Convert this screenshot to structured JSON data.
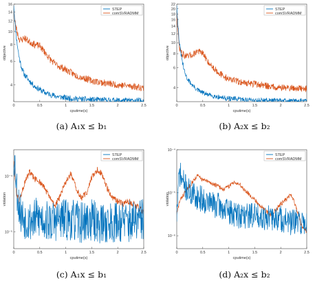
{
  "colors": {
    "series1": "#0072BD",
    "series2": "#D95319",
    "axis": "#444444"
  },
  "chart_data": [
    {
      "type": "line",
      "caption": "(a)  A₁x ≤ b₁",
      "xlabel": "cputime(s)",
      "ylabel": "objective",
      "xlim": [
        0,
        2.5
      ],
      "ylim": [
        3,
        16
      ],
      "yscale": "log",
      "xticks": [
        "0",
        "0.5",
        "1",
        "1.5",
        "2",
        "2.5"
      ],
      "yticks": [
        {
          "v": 16,
          "label": "16"
        },
        {
          "v": 14,
          "label": "14"
        },
        {
          "v": 12,
          "label": "12"
        },
        {
          "v": 10,
          "label": "10"
        },
        {
          "v": 8,
          "label": "8"
        },
        {
          "v": 6,
          "label": "6"
        },
        {
          "v": 4,
          "label": "4"
        }
      ],
      "legend": {
        "position": "top-right",
        "entries": [
          "STEP",
          "comSVRADMM"
        ]
      },
      "series": [
        {
          "name": "STEP",
          "color": "#0072BD",
          "noise": 0.05,
          "seed": 11,
          "x": [
            0,
            0.02,
            0.05,
            0.1,
            0.15,
            0.2,
            0.3,
            0.4,
            0.5,
            0.6,
            0.8,
            1.0,
            1.2,
            1.5,
            1.8,
            2.0,
            2.3,
            2.5
          ],
          "y": [
            16,
            12,
            9,
            6.5,
            5.4,
            4.8,
            4.3,
            3.9,
            3.7,
            3.5,
            3.3,
            3.2,
            3.15,
            3.1,
            3.08,
            3.06,
            3.05,
            3.05
          ]
        },
        {
          "name": "comSVRADMM",
          "color": "#D95319",
          "noise": 0.06,
          "seed": 23,
          "x": [
            0,
            0.02,
            0.05,
            0.1,
            0.15,
            0.2,
            0.3,
            0.4,
            0.5,
            0.6,
            0.7,
            0.8,
            1.0,
            1.2,
            1.5,
            1.8,
            2.0,
            2.3,
            2.5
          ],
          "y": [
            15,
            12,
            10.5,
            8.8,
            8.6,
            9.0,
            8.4,
            8.0,
            7.8,
            7.0,
            6.2,
            5.7,
            5.2,
            4.7,
            4.3,
            4.1,
            4.0,
            3.9,
            3.8
          ]
        }
      ]
    },
    {
      "type": "line",
      "caption": "(b)  A₂x ≤ b₂",
      "xlabel": "cputime(s)",
      "ylabel": "objective",
      "xlim": [
        0,
        2.5
      ],
      "ylim": [
        3,
        22
      ],
      "yscale": "log",
      "xticks": [
        "0",
        "0.5",
        "1",
        "1.5",
        "2",
        "2.5"
      ],
      "yticks": [
        {
          "v": 22,
          "label": "22"
        },
        {
          "v": 20,
          "label": "20"
        },
        {
          "v": 18,
          "label": "18"
        },
        {
          "v": 16,
          "label": "16"
        },
        {
          "v": 14,
          "label": "14"
        },
        {
          "v": 12,
          "label": "12"
        },
        {
          "v": 10,
          "label": "10"
        },
        {
          "v": 8,
          "label": "8"
        },
        {
          "v": 6,
          "label": "6"
        },
        {
          "v": 4,
          "label": "4"
        }
      ],
      "legend": {
        "position": "top-right",
        "entries": [
          "STEP",
          "comSVRADMM"
        ]
      },
      "series": [
        {
          "name": "STEP",
          "color": "#0072BD",
          "noise": 0.05,
          "seed": 31,
          "x": [
            0,
            0.02,
            0.05,
            0.1,
            0.15,
            0.2,
            0.3,
            0.4,
            0.5,
            0.6,
            0.8,
            1.0,
            1.2,
            1.5,
            1.8,
            2.0,
            2.3,
            2.5
          ],
          "y": [
            22,
            15,
            10,
            7,
            5.5,
            4.8,
            4.2,
            3.8,
            3.6,
            3.45,
            3.3,
            3.2,
            3.15,
            3.1,
            3.08,
            3.06,
            3.05,
            3.05
          ]
        },
        {
          "name": "comSVRADMM",
          "color": "#D95319",
          "noise": 0.07,
          "seed": 47,
          "x": [
            0,
            0.02,
            0.05,
            0.1,
            0.2,
            0.3,
            0.4,
            0.5,
            0.6,
            0.7,
            0.8,
            0.9,
            1.0,
            1.2,
            1.5,
            1.8,
            2.0,
            2.3,
            2.5
          ],
          "y": [
            20,
            13,
            9,
            8,
            7.5,
            7.8,
            8.5,
            8.0,
            6.8,
            6.0,
            5.5,
            5.0,
            4.8,
            4.5,
            4.3,
            4.1,
            4.0,
            3.95,
            3.9
          ]
        }
      ]
    },
    {
      "type": "line",
      "caption": "(c)  A₁x ≤ b₁",
      "xlabel": "cputime(s)",
      "ylabel": "violation",
      "xlim": [
        0,
        2.5
      ],
      "ylim": [
        5e-06,
        0.0003
      ],
      "yscale": "log",
      "xticks": [
        "0",
        "0.5",
        "1",
        "1.5",
        "2",
        "2.5"
      ],
      "yticks": [
        {
          "v": 0.0001,
          "label": "10⁻⁴"
        },
        {
          "v": 1e-05,
          "label": "10⁻⁵"
        }
      ],
      "legend": {
        "position": "top-right",
        "entries": [
          "STEP",
          "comSVRADMM"
        ]
      },
      "series": [
        {
          "name": "STEP",
          "color": "#0072BD",
          "noise": 0.55,
          "seed": 53,
          "x": [
            0,
            0.03,
            0.06,
            0.1,
            0.15,
            0.2,
            0.3,
            0.5,
            0.7,
            0.9,
            1.1,
            1.3,
            1.5,
            1.7,
            1.9,
            2.1,
            2.3,
            2.5
          ],
          "y": [
            0.00025,
            0.00015,
            6e-05,
            3e-05,
            2e-05,
            1.8e-05,
            1.6e-05,
            1.8e-05,
            1.5e-05,
            1.7e-05,
            1.6e-05,
            1.5e-05,
            1.6e-05,
            1.4e-05,
            1.5e-05,
            1.6e-05,
            1.5e-05,
            1.7e-05
          ]
        },
        {
          "name": "comSVRADMM",
          "color": "#D95319",
          "noise": 0.14,
          "seed": 61,
          "x": [
            0,
            0.05,
            0.1,
            0.2,
            0.3,
            0.4,
            0.5,
            0.6,
            0.7,
            0.8,
            0.9,
            1.0,
            1.1,
            1.2,
            1.3,
            1.4,
            1.5,
            1.6,
            1.7,
            1.8,
            1.9,
            2.0,
            2.1,
            2.2,
            2.3,
            2.4,
            2.5
          ],
          "y": [
            0.0002,
            5e-05,
            3.5e-05,
            7e-05,
            0.00012,
            9e-05,
            8e-05,
            6e-05,
            4e-05,
            3e-05,
            4.5e-05,
            8e-05,
            0.00011,
            6e-05,
            4e-05,
            5e-05,
            9.5e-05,
            0.00013,
            0.00011,
            6e-05,
            4e-05,
            3.5e-05,
            3.2e-05,
            3.6e-05,
            3.2e-05,
            2.8e-05,
            2.2e-05
          ]
        }
      ]
    },
    {
      "type": "line",
      "caption": "(d)  A₂x ≤ b₂",
      "xlabel": "cputime(s)",
      "ylabel": "violation",
      "xlim": [
        0,
        2.5
      ],
      "ylim": [
        5e-07,
        0.0001
      ],
      "yscale": "log",
      "xticks": [
        "0",
        "0.5",
        "1",
        "1.5",
        "2",
        "2.5"
      ],
      "yticks": [
        {
          "v": 0.0001,
          "label": "10⁻⁴"
        },
        {
          "v": 1e-05,
          "label": "10⁻⁵"
        },
        {
          "v": 1e-06,
          "label": "10⁻⁶"
        }
      ],
      "legend": {
        "position": "top-right",
        "entries": [
          "STEP",
          "comSVRADMM"
        ]
      },
      "series": [
        {
          "name": "STEP",
          "color": "#0072BD",
          "noise": 0.45,
          "seed": 71,
          "x": [
            0,
            0.05,
            0.1,
            0.15,
            0.2,
            0.3,
            0.4,
            0.6,
            0.8,
            1.0,
            1.2,
            1.4,
            1.6,
            1.8,
            2.0,
            2.2,
            2.4,
            2.5
          ],
          "y": [
            3e-06,
            3e-05,
            2e-05,
            1.5e-05,
            1.2e-05,
            9e-06,
            8e-06,
            6e-06,
            5e-06,
            3.5e-06,
            3e-06,
            3e-06,
            3e-06,
            2.5e-06,
            2.5e-06,
            2e-06,
            2e-06,
            2e-06
          ]
        },
        {
          "name": "comSVRADMM",
          "color": "#D95319",
          "noise": 0.12,
          "seed": 83,
          "x": [
            0,
            0.05,
            0.1,
            0.2,
            0.3,
            0.4,
            0.5,
            0.6,
            0.7,
            0.8,
            0.9,
            1.0,
            1.1,
            1.2,
            1.3,
            1.4,
            1.5,
            1.6,
            1.7,
            1.8,
            1.9,
            2.0,
            2.1,
            2.2,
            2.3,
            2.4,
            2.5
          ],
          "y": [
            3e-06,
            6e-06,
            8e-06,
            1.2e-05,
            1.8e-05,
            2.5e-05,
            2e-05,
            1.8e-05,
            1.6e-05,
            1.4e-05,
            1.2e-05,
            1.4e-05,
            1.8e-05,
            1.6e-05,
            1.2e-05,
            9e-06,
            7e-06,
            5e-06,
            4e-06,
            3e-06,
            4e-06,
            5.5e-06,
            7e-06,
            9e-06,
            4.5e-06,
            1.8e-06,
            1.2e-06
          ]
        }
      ]
    }
  ]
}
